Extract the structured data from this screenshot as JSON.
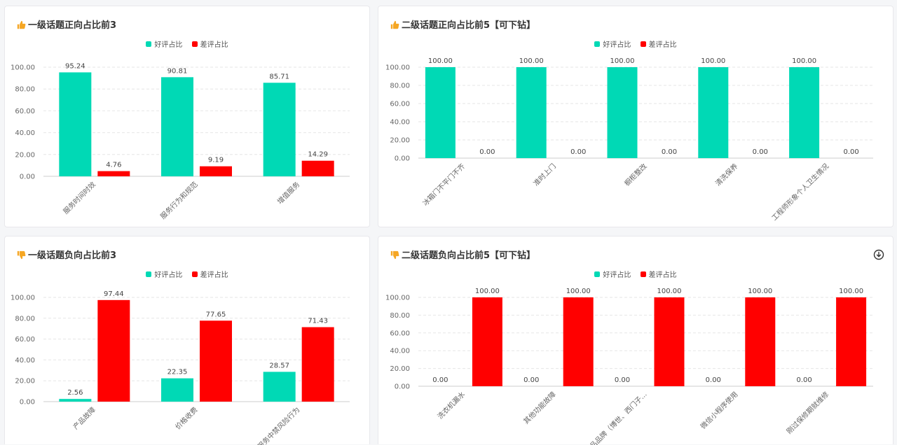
{
  "colors": {
    "good": "#00d9b5",
    "bad": "#ff0000",
    "grid": "#e6e6e6",
    "axis": "#cccccc"
  },
  "legend": {
    "good": "好评占比",
    "bad": "差评占比"
  },
  "cards": [
    {
      "title": "一级话题正向占比前3",
      "icon": "thumbs-up-icon",
      "chart_data": {
        "type": "bar",
        "categories": [
          "服务时间时效",
          "服务行为和规范",
          "增值服务"
        ],
        "series": [
          {
            "name": "好评占比",
            "values": [
              95.24,
              90.81,
              85.71
            ]
          },
          {
            "name": "差评占比",
            "values": [
              4.76,
              9.19,
              14.29
            ]
          }
        ],
        "value_labels": [
          [
            "95.24",
            "90.81",
            "85.71"
          ],
          [
            "4.76",
            "9.19",
            "14.29"
          ]
        ],
        "ylim": [
          0,
          100
        ],
        "yticks": [
          "0.00",
          "20.00",
          "40.00",
          "60.00",
          "80.00",
          "100.00"
        ],
        "grid": true,
        "legend_position": "top-center"
      }
    },
    {
      "title": "二级话题正向占比前5【可下钻】",
      "icon": "thumbs-up-icon",
      "chart_data": {
        "type": "bar",
        "categories": [
          "冰箱门不平门不齐",
          "准时上门",
          "橱柜整改",
          "清洗保养",
          "工程师形象个人卫生情况"
        ],
        "series": [
          {
            "name": "好评占比",
            "values": [
              100,
              100,
              100,
              100,
              100
            ]
          },
          {
            "name": "差评占比",
            "values": [
              0,
              0,
              0,
              0,
              0
            ]
          }
        ],
        "value_labels": [
          [
            "100.00",
            "100.00",
            "100.00",
            "100.00",
            "100.00"
          ],
          [
            "0.00",
            "0.00",
            "0.00",
            "0.00",
            "0.00"
          ]
        ],
        "ylim": [
          0,
          100
        ],
        "yticks": [
          "0.00",
          "20.00",
          "40.00",
          "60.00",
          "80.00",
          "100.00"
        ],
        "grid": true,
        "legend_position": "top-center"
      }
    },
    {
      "title": "一级话题负向占比前3",
      "icon": "thumbs-down-icon",
      "chart_data": {
        "type": "bar",
        "categories": [
          "产品故障",
          "价格收费",
          "服务中禁风险行为"
        ],
        "series": [
          {
            "name": "好评占比",
            "values": [
              2.56,
              22.35,
              28.57
            ]
          },
          {
            "name": "差评占比",
            "values": [
              97.44,
              77.65,
              71.43
            ]
          }
        ],
        "value_labels": [
          [
            "2.56",
            "22.35",
            "28.57"
          ],
          [
            "97.44",
            "77.65",
            "71.43"
          ]
        ],
        "ylim": [
          0,
          100
        ],
        "yticks": [
          "0.00",
          "20.00",
          "40.00",
          "60.00",
          "80.00",
          "100.00"
        ],
        "grid": true,
        "legend_position": "top-center"
      }
    },
    {
      "title": "二级话题负向占比前5【可下钻】",
      "icon": "thumbs-down-icon",
      "chart_data": {
        "type": "bar",
        "categories": [
          "洗衣机漏水",
          "其他功能故障",
          "竞品品牌（博世、西门子...",
          "微信小程序使用",
          "刚过保修期就维修"
        ],
        "series": [
          {
            "name": "好评占比",
            "values": [
              0,
              0,
              0,
              0,
              0
            ]
          },
          {
            "name": "差评占比",
            "values": [
              100,
              100,
              100,
              100,
              100
            ]
          }
        ],
        "value_labels": [
          [
            "0.00",
            "0.00",
            "0.00",
            "0.00",
            "0.00"
          ],
          [
            "100.00",
            "100.00",
            "100.00",
            "100.00",
            "100.00"
          ]
        ],
        "ylim": [
          0,
          100
        ],
        "yticks": [
          "0.00",
          "20.00",
          "40.00",
          "60.00",
          "80.00",
          "100.00"
        ],
        "grid": true,
        "legend_position": "top-center"
      }
    }
  ],
  "download_icon": "download-cloud-icon"
}
